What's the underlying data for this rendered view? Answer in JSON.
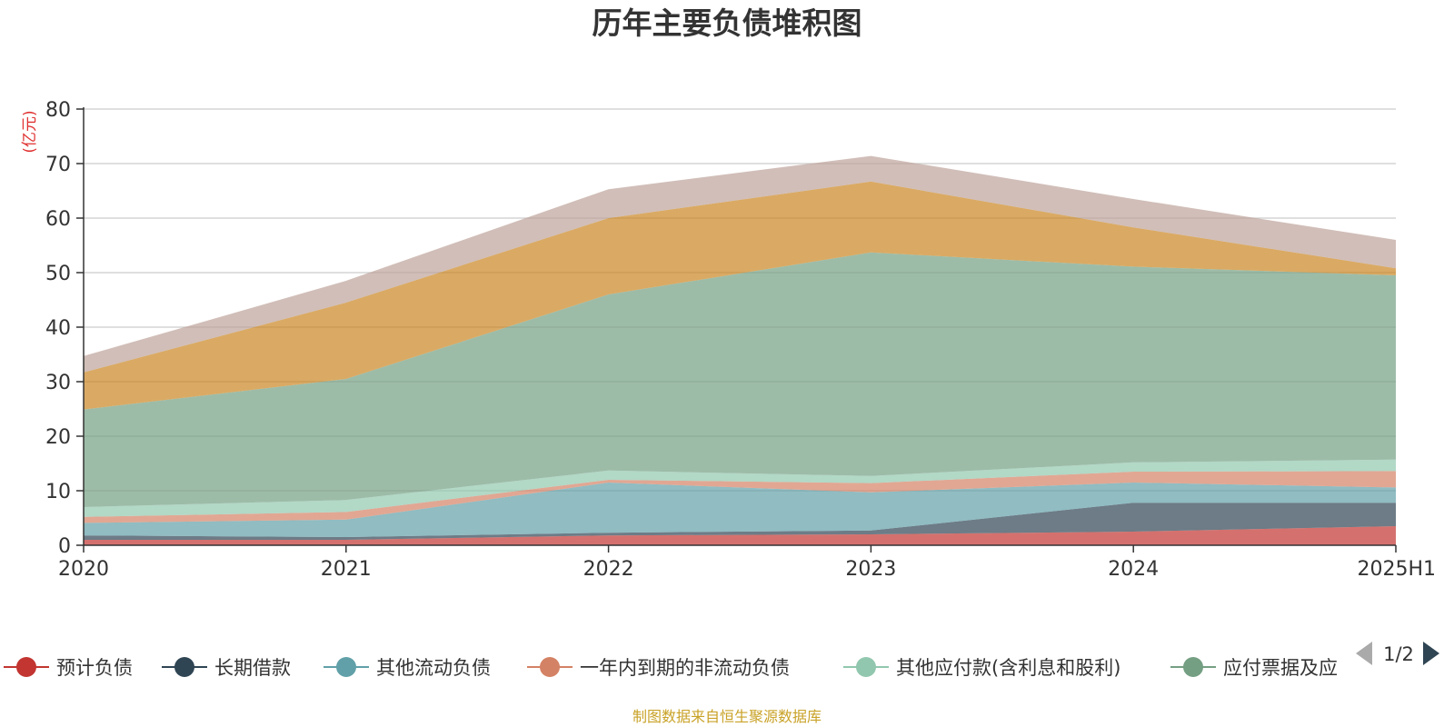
{
  "chart_data": {
    "type": "area",
    "stacked": true,
    "title": "历年主要负债堆积图",
    "unit_label": "(亿元)",
    "categories": [
      "2020",
      "2021",
      "2022",
      "2023",
      "2024",
      "2025H1"
    ],
    "ylim": [
      0,
      80
    ],
    "yticks": [
      0,
      10,
      20,
      30,
      40,
      50,
      60,
      70,
      80
    ],
    "grid": true,
    "series": [
      {
        "name": "预计负债",
        "color": "#c23531",
        "legend_color": "#c23531",
        "values": [
          1.0,
          1.0,
          1.8,
          2.0,
          2.5,
          3.5
        ]
      },
      {
        "name": "长期借款",
        "color": "#2f4554",
        "legend_color": "#2f4554",
        "values": [
          0.8,
          0.5,
          0.5,
          0.7,
          5.3,
          4.3
        ]
      },
      {
        "name": "其他流动负债",
        "color": "#61a0a8",
        "legend_color": "#61a0a8",
        "values": [
          2.3,
          3.2,
          9.2,
          7.0,
          3.7,
          2.8
        ]
      },
      {
        "name": "一年内到期的非流动负债",
        "color": "#d48265",
        "legend_color": "#d48265",
        "values": [
          1.1,
          1.4,
          0.5,
          1.7,
          2.0,
          3.0
        ]
      },
      {
        "name": "其他应付款(含利息和股利)",
        "color": "#91c7ae",
        "legend_color": "#91c7ae",
        "values": [
          1.8,
          2.2,
          1.7,
          1.3,
          1.7,
          2.1
        ]
      },
      {
        "name": "应付票据及应付账款",
        "color": "#749f83",
        "values": [
          17.9,
          22.2,
          32.3,
          41.0,
          35.9,
          33.8
        ]
      },
      {
        "name": "",
        "color": "#ca8622",
        "values": [
          6.8,
          14.0,
          14.0,
          13.0,
          7.2,
          1.3
        ]
      },
      {
        "name": "",
        "color": "#bda29a",
        "values": [
          3.0,
          4.0,
          5.3,
          4.7,
          5.2,
          5.2
        ]
      }
    ],
    "legend": {
      "placement": "bottom",
      "items": [
        "预计负债",
        "长期借款",
        "其他流动负债",
        "一年内到期的非流动负债",
        "其他应付款(含利息和股利)",
        "应付票据及应"
      ],
      "page": "1/2"
    }
  },
  "source_note": "制图数据来自恒生聚源数据库"
}
